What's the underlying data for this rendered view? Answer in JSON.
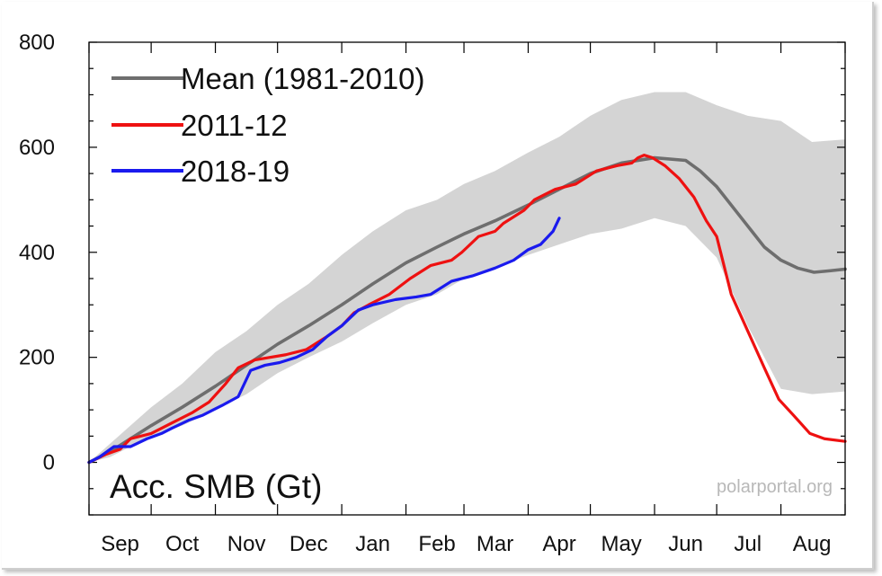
{
  "chart_data": {
    "type": "line",
    "title": "Acc. SMB (Gt)",
    "watermark": "polarportal.org",
    "xlabel": "",
    "ylabel": "",
    "ylim": [
      -100,
      800
    ],
    "xlim": [
      0,
      365
    ],
    "y_ticks": [
      0,
      200,
      400,
      600,
      800
    ],
    "y_tick_labels": [
      "0",
      "200",
      "400",
      "600",
      "800"
    ],
    "x_ticks": [
      {
        "label": "Sep",
        "day": 15
      },
      {
        "label": "Oct",
        "day": 45
      },
      {
        "label": "Nov",
        "day": 76
      },
      {
        "label": "Dec",
        "day": 106
      },
      {
        "label": "Jan",
        "day": 137
      },
      {
        "label": "Feb",
        "day": 168
      },
      {
        "label": "Mar",
        "day": 196
      },
      {
        "label": "Apr",
        "day": 227
      },
      {
        "label": "May",
        "day": 257
      },
      {
        "label": "Jun",
        "day": 288
      },
      {
        "label": "Jul",
        "day": 318
      },
      {
        "label": "Aug",
        "day": 349
      }
    ],
    "month_boundaries": [
      0,
      30,
      61,
      91,
      122,
      153,
      181,
      212,
      242,
      273,
      303,
      334,
      365
    ],
    "x_unit": "days since 1 Sep",
    "legend_position": "top-left",
    "band": {
      "color": "#d4d4d4",
      "upper": [
        [
          0,
          0
        ],
        [
          10,
          35
        ],
        [
          20,
          70
        ],
        [
          30,
          105
        ],
        [
          45,
          150
        ],
        [
          61,
          210
        ],
        [
          76,
          250
        ],
        [
          91,
          300
        ],
        [
          106,
          340
        ],
        [
          122,
          395
        ],
        [
          137,
          440
        ],
        [
          153,
          480
        ],
        [
          168,
          500
        ],
        [
          181,
          530
        ],
        [
          196,
          555
        ],
        [
          212,
          590
        ],
        [
          227,
          620
        ],
        [
          242,
          660
        ],
        [
          257,
          690
        ],
        [
          273,
          705
        ],
        [
          288,
          705
        ],
        [
          303,
          680
        ],
        [
          318,
          660
        ],
        [
          334,
          650
        ],
        [
          349,
          610
        ],
        [
          365,
          615
        ]
      ],
      "lower": [
        [
          0,
          0
        ],
        [
          10,
          10
        ],
        [
          20,
          30
        ],
        [
          30,
          50
        ],
        [
          45,
          70
        ],
        [
          61,
          100
        ],
        [
          76,
          130
        ],
        [
          91,
          170
        ],
        [
          106,
          200
        ],
        [
          122,
          230
        ],
        [
          137,
          265
        ],
        [
          153,
          300
        ],
        [
          168,
          320
        ],
        [
          181,
          350
        ],
        [
          196,
          370
        ],
        [
          212,
          395
        ],
        [
          227,
          415
        ],
        [
          242,
          435
        ],
        [
          257,
          445
        ],
        [
          273,
          465
        ],
        [
          288,
          450
        ],
        [
          303,
          390
        ],
        [
          318,
          260
        ],
        [
          334,
          140
        ],
        [
          349,
          130
        ],
        [
          365,
          135
        ]
      ]
    },
    "series": [
      {
        "name": "Mean (1981-2010)",
        "color": "#6e6e6e",
        "points": [
          [
            0,
            0
          ],
          [
            10,
            20
          ],
          [
            20,
            45
          ],
          [
            30,
            70
          ],
          [
            45,
            105
          ],
          [
            61,
            145
          ],
          [
            76,
            185
          ],
          [
            91,
            225
          ],
          [
            106,
            260
          ],
          [
            122,
            300
          ],
          [
            137,
            340
          ],
          [
            153,
            380
          ],
          [
            168,
            410
          ],
          [
            181,
            435
          ],
          [
            196,
            460
          ],
          [
            212,
            490
          ],
          [
            227,
            520
          ],
          [
            242,
            550
          ],
          [
            257,
            570
          ],
          [
            273,
            580
          ],
          [
            288,
            575
          ],
          [
            295,
            555
          ],
          [
            303,
            525
          ],
          [
            310,
            490
          ],
          [
            318,
            450
          ],
          [
            326,
            410
          ],
          [
            334,
            385
          ],
          [
            342,
            370
          ],
          [
            350,
            362
          ],
          [
            358,
            365
          ],
          [
            365,
            368
          ]
        ]
      },
      {
        "name": "2011-12",
        "color": "#ee1111",
        "points": [
          [
            0,
            0
          ],
          [
            8,
            15
          ],
          [
            15,
            25
          ],
          [
            20,
            45
          ],
          [
            30,
            55
          ],
          [
            40,
            75
          ],
          [
            50,
            95
          ],
          [
            58,
            115
          ],
          [
            66,
            150
          ],
          [
            72,
            180
          ],
          [
            80,
            195
          ],
          [
            95,
            205
          ],
          [
            105,
            215
          ],
          [
            115,
            240
          ],
          [
            122,
            260
          ],
          [
            128,
            285
          ],
          [
            135,
            300
          ],
          [
            145,
            320
          ],
          [
            155,
            350
          ],
          [
            165,
            375
          ],
          [
            175,
            385
          ],
          [
            180,
            400
          ],
          [
            188,
            430
          ],
          [
            196,
            440
          ],
          [
            200,
            455
          ],
          [
            210,
            480
          ],
          [
            215,
            500
          ],
          [
            225,
            520
          ],
          [
            235,
            530
          ],
          [
            245,
            555
          ],
          [
            255,
            565
          ],
          [
            262,
            570
          ],
          [
            265,
            580
          ],
          [
            268,
            585
          ],
          [
            272,
            580
          ],
          [
            278,
            565
          ],
          [
            285,
            540
          ],
          [
            292,
            505
          ],
          [
            298,
            460
          ],
          [
            303,
            430
          ],
          [
            310,
            320
          ],
          [
            318,
            250
          ],
          [
            326,
            180
          ],
          [
            333,
            120
          ],
          [
            340,
            90
          ],
          [
            348,
            55
          ],
          [
            355,
            45
          ],
          [
            365,
            40
          ]
        ]
      },
      {
        "name": "2018-19",
        "color": "#1a1aee",
        "points": [
          [
            0,
            0
          ],
          [
            5,
            10
          ],
          [
            12,
            30
          ],
          [
            20,
            30
          ],
          [
            28,
            45
          ],
          [
            35,
            55
          ],
          [
            40,
            65
          ],
          [
            48,
            80
          ],
          [
            55,
            90
          ],
          [
            60,
            100
          ],
          [
            65,
            110
          ],
          [
            72,
            125
          ],
          [
            78,
            175
          ],
          [
            85,
            185
          ],
          [
            92,
            190
          ],
          [
            100,
            200
          ],
          [
            108,
            215
          ],
          [
            115,
            240
          ],
          [
            122,
            260
          ],
          [
            130,
            290
          ],
          [
            137,
            300
          ],
          [
            148,
            310
          ],
          [
            158,
            315
          ],
          [
            165,
            320
          ],
          [
            175,
            345
          ],
          [
            185,
            355
          ],
          [
            196,
            370
          ],
          [
            205,
            385
          ],
          [
            212,
            405
          ],
          [
            218,
            415
          ],
          [
            224,
            440
          ],
          [
            227,
            465
          ]
        ]
      }
    ]
  }
}
